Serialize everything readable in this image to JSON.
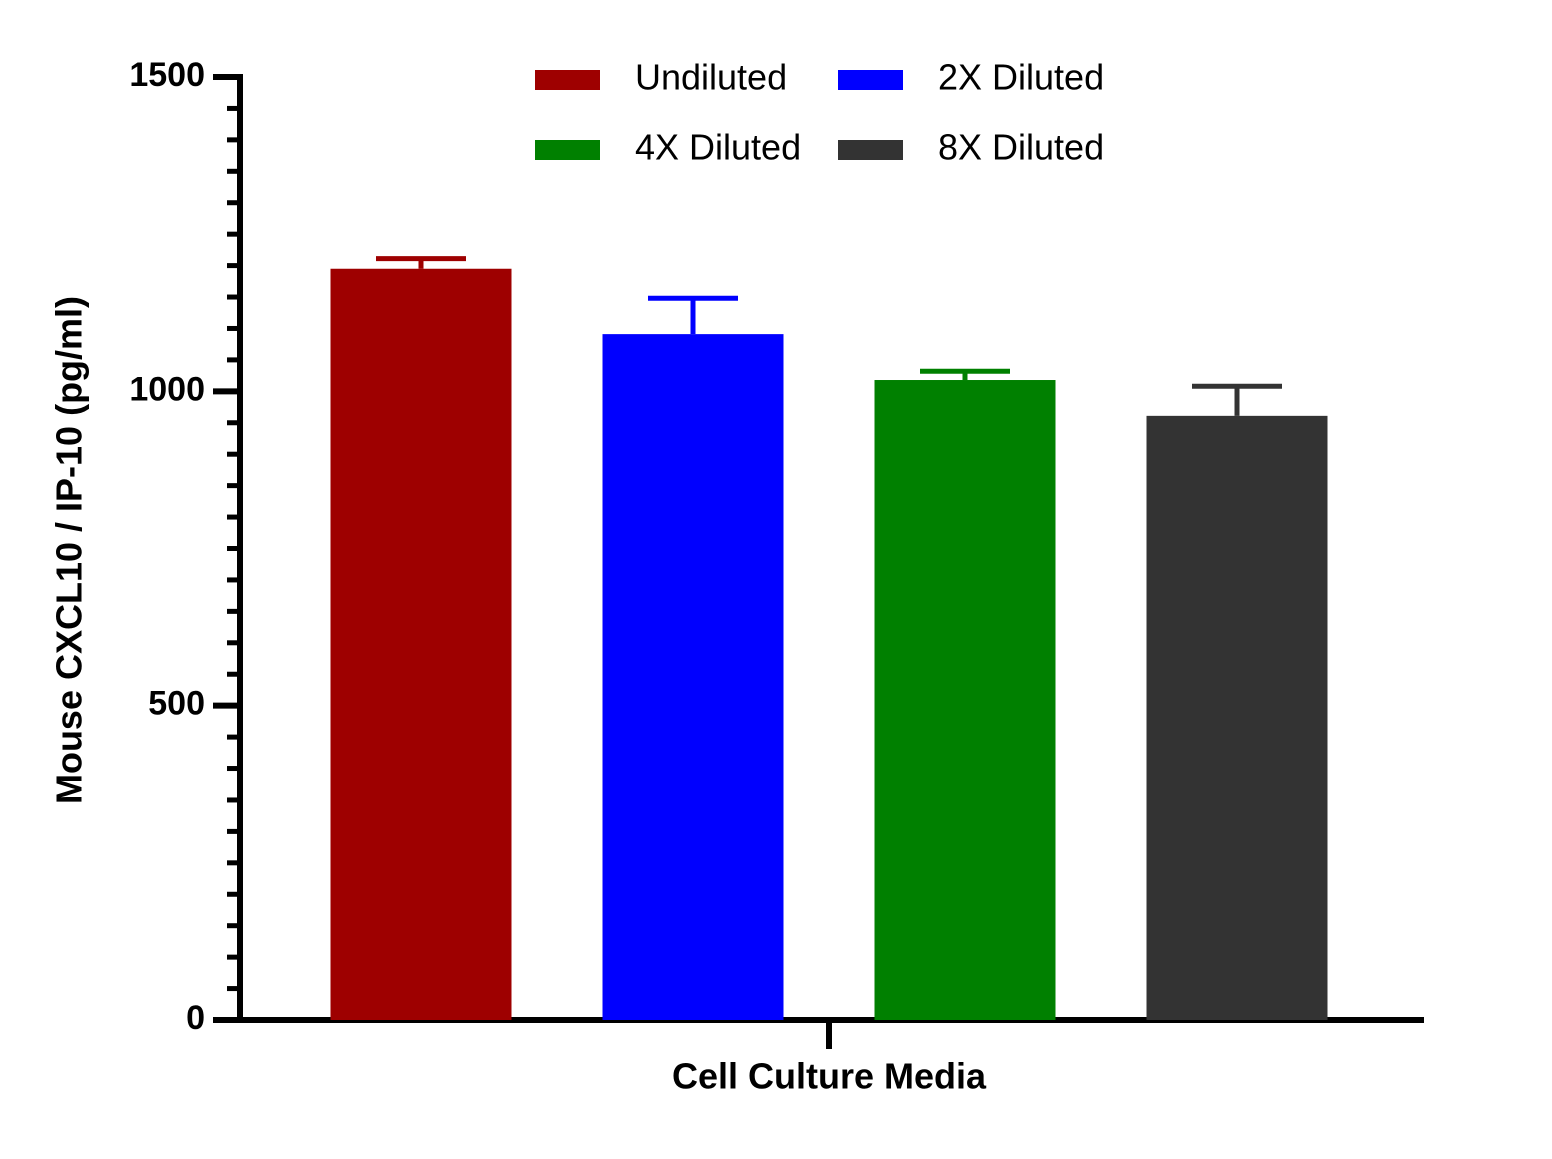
{
  "chart_data": {
    "type": "bar",
    "y_label": "Mouse CXCL10 / IP-10 (pg/ml)",
    "categories": [
      "Cell Culture Media"
    ],
    "series": [
      {
        "name": "Undiluted",
        "color": "#9e0000",
        "values": [
          1195
        ],
        "errors": [
          16
        ]
      },
      {
        "name": "2X Diluted",
        "color": "#0000ff",
        "values": [
          1091
        ],
        "errors": [
          57
        ]
      },
      {
        "name": "4X Diluted",
        "color": "#008000",
        "values": [
          1018
        ],
        "errors": [
          14
        ]
      },
      {
        "name": "8X Diluted",
        "color": "#333333",
        "values": [
          961
        ],
        "errors": [
          47
        ]
      }
    ],
    "ylim": [
      0,
      1500
    ],
    "yticks": [
      0,
      500,
      1000,
      1500
    ],
    "yminorticks": [
      0,
      50,
      100,
      150,
      200,
      250,
      300,
      350,
      400,
      450,
      500,
      550,
      600,
      650,
      700,
      750,
      800,
      850,
      900,
      950,
      1000,
      1050,
      1100,
      1150,
      1200,
      1250,
      1300,
      1350,
      1400,
      1450,
      1500
    ],
    "legend": "top",
    "grid": false
  }
}
